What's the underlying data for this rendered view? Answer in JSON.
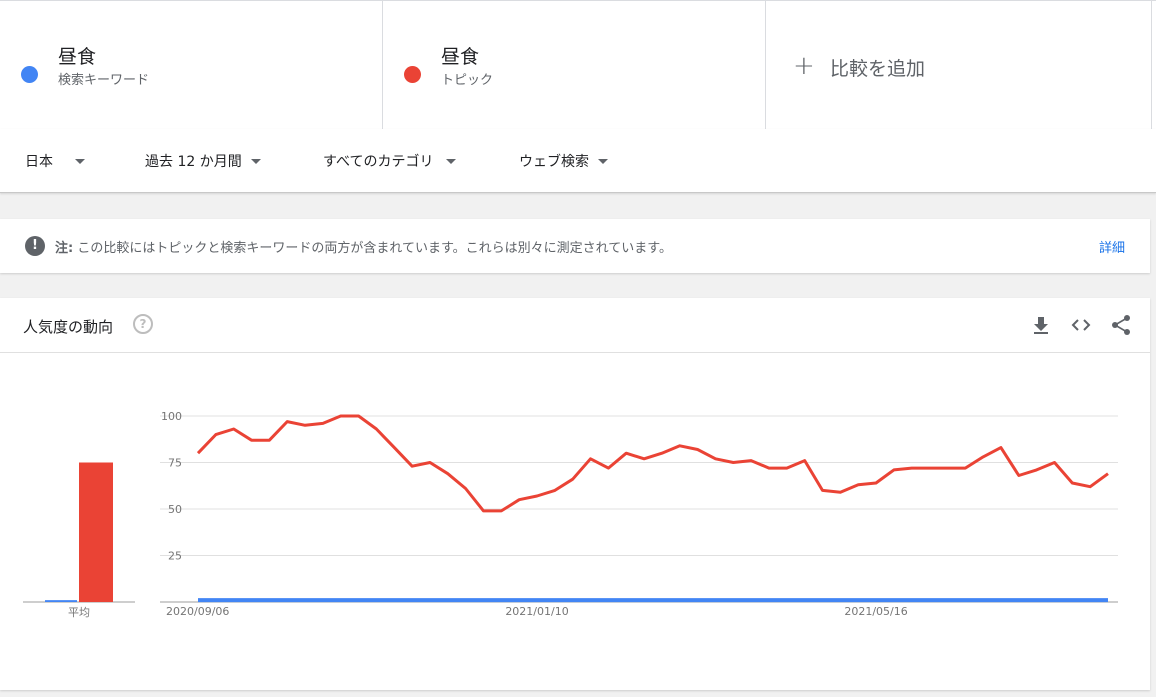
{
  "terms": [
    {
      "name": "昼食",
      "type": "検索キーワード",
      "color": "#4285f4"
    },
    {
      "name": "昼食",
      "type": "トピック",
      "color": "#ea4335"
    }
  ],
  "add_compare": {
    "label": "比較を追加"
  },
  "filters": {
    "region": "日本",
    "period": "過去 12 か月間",
    "category": "すべてのカテゴリ",
    "search_type": "ウェブ検索"
  },
  "note": {
    "label": "注:",
    "text": "この比較にはトピックと検索キーワードの両方が含まれています。これらは別々に測定されています。",
    "link": "詳細"
  },
  "card": {
    "title": "人気度の動向",
    "help_icon": "help-circle-icon",
    "tools": [
      "download-icon",
      "embed-code-icon",
      "share-icon"
    ]
  },
  "chart_data": {
    "type": "line",
    "ylim": [
      0,
      100
    ],
    "y_ticks": [
      25,
      50,
      75,
      100
    ],
    "x_tick_labels": [
      "2020/09/06",
      "2021/01/10",
      "2021/05/16"
    ],
    "average": {
      "label": "平均",
      "values": [
        {
          "name": "昼食 (検索キーワード)",
          "value": 1,
          "color": "#4285f4"
        },
        {
          "name": "昼食 (トピック)",
          "value": 75,
          "color": "#ea4335"
        }
      ]
    },
    "series": [
      {
        "name": "昼食 (トピック)",
        "color": "#ea4335",
        "values": [
          80,
          90,
          93,
          87,
          87,
          97,
          95,
          96,
          100,
          100,
          93,
          83,
          73,
          75,
          69,
          61,
          49,
          49,
          55,
          57,
          60,
          66,
          77,
          72,
          80,
          77,
          80,
          84,
          82,
          77,
          75,
          76,
          72,
          72,
          76,
          60,
          59,
          63,
          64,
          71,
          72,
          72,
          72,
          72,
          78,
          83,
          68,
          71,
          75,
          64,
          62,
          69
        ]
      },
      {
        "name": "昼食 (検索キーワード)",
        "color": "#4285f4",
        "values": [
          1,
          1,
          1,
          1,
          1,
          1,
          1,
          1,
          1,
          1,
          1,
          1,
          1,
          1,
          1,
          1,
          1,
          1,
          1,
          1,
          1,
          1,
          1,
          1,
          1,
          1,
          1,
          1,
          1,
          1,
          1,
          1,
          1,
          1,
          1,
          1,
          1,
          1,
          1,
          1,
          1,
          1,
          1,
          1,
          1,
          1,
          1,
          1,
          1,
          1,
          1,
          1
        ]
      }
    ]
  }
}
